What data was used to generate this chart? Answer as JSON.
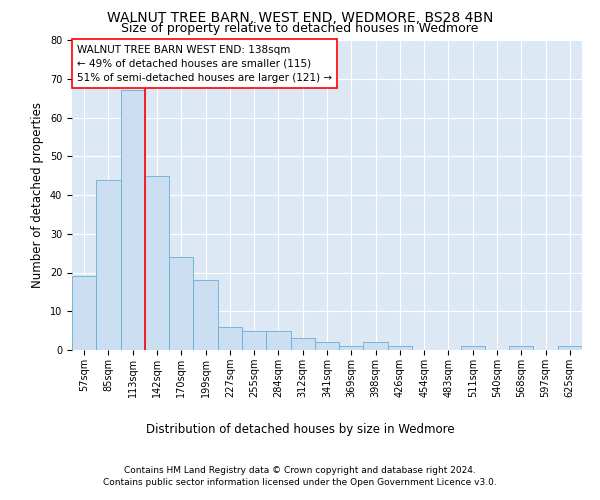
{
  "title1": "WALNUT TREE BARN, WEST END, WEDMORE, BS28 4BN",
  "title2": "Size of property relative to detached houses in Wedmore",
  "xlabel": "Distribution of detached houses by size in Wedmore",
  "ylabel": "Number of detached properties",
  "bar_color": "#ccdff2",
  "bar_edge_color": "#6aaed6",
  "background_color": "#dce9f5",
  "bins": [
    "57sqm",
    "85sqm",
    "113sqm",
    "142sqm",
    "170sqm",
    "199sqm",
    "227sqm",
    "255sqm",
    "284sqm",
    "312sqm",
    "341sqm",
    "369sqm",
    "398sqm",
    "426sqm",
    "454sqm",
    "483sqm",
    "511sqm",
    "540sqm",
    "568sqm",
    "597sqm",
    "625sqm"
  ],
  "values": [
    19,
    44,
    67,
    45,
    24,
    18,
    6,
    5,
    5,
    3,
    2,
    1,
    2,
    1,
    0,
    0,
    1,
    0,
    1,
    0,
    1
  ],
  "property_label": "WALNUT TREE BARN WEST END: 138sqm",
  "pct_smaller": 49,
  "n_smaller": 115,
  "pct_larger": 51,
  "n_larger": 121,
  "vline_x": 2.5,
  "ylim": [
    0,
    80
  ],
  "yticks": [
    0,
    10,
    20,
    30,
    40,
    50,
    60,
    70,
    80
  ],
  "footnote1": "Contains HM Land Registry data © Crown copyright and database right 2024.",
  "footnote2": "Contains public sector information licensed under the Open Government Licence v3.0.",
  "grid_color": "#ffffff",
  "title_fontsize": 10,
  "subtitle_fontsize": 9,
  "axis_label_fontsize": 8.5,
  "tick_fontsize": 7,
  "annotation_fontsize": 7.5,
  "footnote_fontsize": 6.5
}
